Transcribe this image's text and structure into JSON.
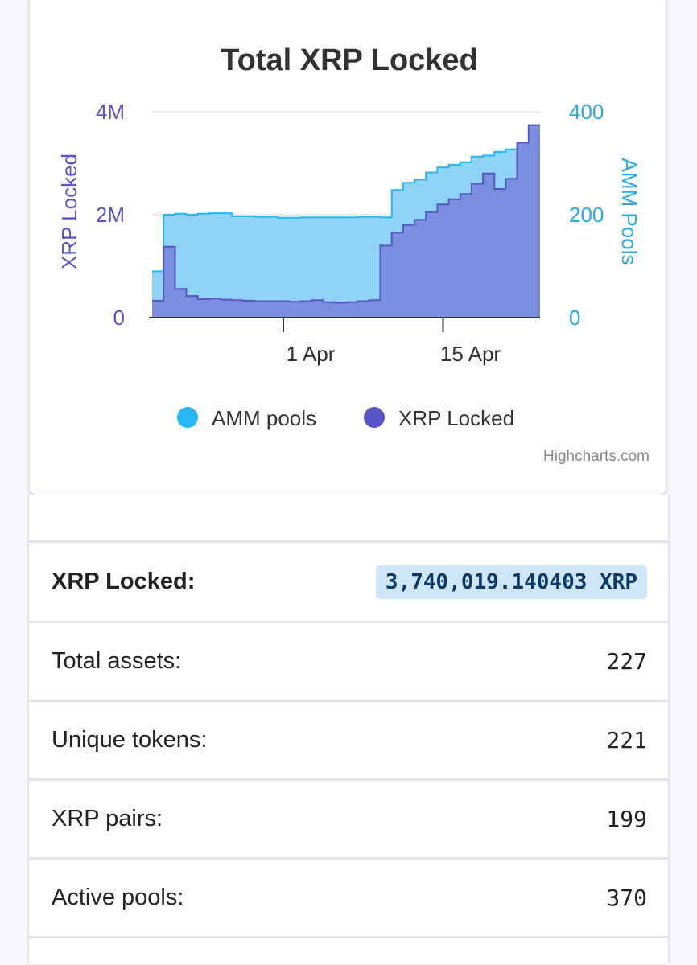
{
  "chart_data": {
    "type": "area",
    "title": "Total XRP Locked",
    "x_ticks": [
      "1 Apr",
      "15 Apr"
    ],
    "y_left": {
      "title": "XRP Locked",
      "ticks": [
        "0",
        "2M",
        "4M"
      ],
      "range": [
        0,
        4000000
      ]
    },
    "y_right": {
      "title": "AMM Pools",
      "ticks": [
        "0",
        "200",
        "400"
      ],
      "range": [
        0,
        400
      ]
    },
    "legend": {
      "placement": "bottom-center"
    },
    "series": [
      {
        "name": "AMM pools",
        "axis": "right",
        "color": "#29b6f6",
        "fill": "#8fd3f8",
        "step": true,
        "x": [
          "21 Mar",
          "22 Mar",
          "23 Mar",
          "24 Mar",
          "25 Mar",
          "26 Mar",
          "27 Mar",
          "28 Mar",
          "29 Mar",
          "30 Mar",
          "31 Mar",
          "1 Apr",
          "2 Apr",
          "3 Apr",
          "4 Apr",
          "5 Apr",
          "6 Apr",
          "7 Apr",
          "8 Apr",
          "9 Apr",
          "10 Apr",
          "11 Apr",
          "12 Apr",
          "13 Apr",
          "14 Apr",
          "15 Apr",
          "16 Apr",
          "17 Apr",
          "18 Apr",
          "19 Apr",
          "20 Apr",
          "21 Apr",
          "22 Apr",
          "23 Apr"
        ],
        "values": [
          90,
          200,
          202,
          200,
          202,
          203,
          203,
          197,
          197,
          196,
          196,
          194,
          194,
          195,
          195,
          195,
          195,
          195,
          196,
          196,
          195,
          248,
          262,
          268,
          282,
          292,
          297,
          302,
          313,
          315,
          322,
          327,
          330,
          330
        ]
      },
      {
        "name": "XRP Locked",
        "axis": "left",
        "color": "#5a55c6",
        "fill": "#7b8fe0",
        "step": true,
        "x": [
          "21 Mar",
          "22 Mar",
          "23 Mar",
          "24 Mar",
          "25 Mar",
          "26 Mar",
          "27 Mar",
          "28 Mar",
          "29 Mar",
          "30 Mar",
          "31 Mar",
          "1 Apr",
          "2 Apr",
          "3 Apr",
          "4 Apr",
          "5 Apr",
          "6 Apr",
          "7 Apr",
          "8 Apr",
          "9 Apr",
          "10 Apr",
          "11 Apr",
          "12 Apr",
          "13 Apr",
          "14 Apr",
          "15 Apr",
          "16 Apr",
          "17 Apr",
          "18 Apr",
          "19 Apr",
          "20 Apr",
          "21 Apr",
          "22 Apr",
          "23 Apr"
        ],
        "values": [
          330000,
          1380000,
          560000,
          420000,
          360000,
          370000,
          350000,
          340000,
          330000,
          320000,
          320000,
          320000,
          310000,
          320000,
          340000,
          300000,
          290000,
          300000,
          320000,
          340000,
          1400000,
          1650000,
          1800000,
          1900000,
          2050000,
          2200000,
          2300000,
          2400000,
          2600000,
          2800000,
          2500000,
          2700000,
          3400000,
          3740000
        ]
      }
    ],
    "credits": "Highcharts.com"
  },
  "stats": {
    "rows": [
      {
        "label": "XRP Locked:",
        "value": "3,740,019.140403 XRP"
      },
      {
        "label": "Total assets:",
        "value": "227"
      },
      {
        "label": "Unique tokens:",
        "value": "221"
      },
      {
        "label": "XRP pairs:",
        "value": "199"
      },
      {
        "label": "Active pools:",
        "value": "370"
      }
    ]
  }
}
